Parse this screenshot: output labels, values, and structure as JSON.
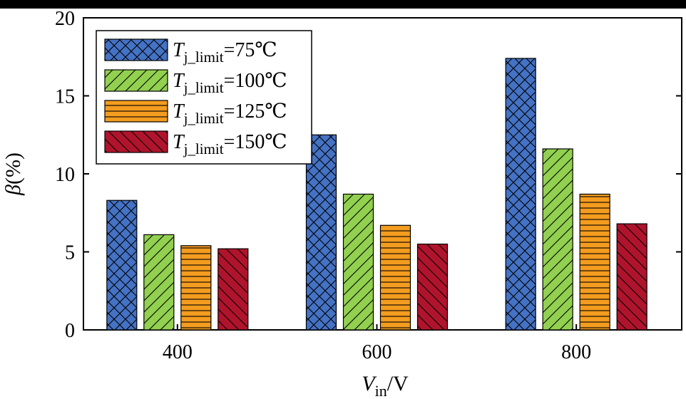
{
  "chart_data": {
    "type": "bar",
    "title": "",
    "xlabel": {
      "main": "V",
      "sub": "in",
      "unit": "/V"
    },
    "ylabel": {
      "symbol": "β",
      "unit": "(%)"
    },
    "categories": [
      "400",
      "600",
      "800"
    ],
    "ylim": [
      0,
      20
    ],
    "yticks": [
      "0",
      "5",
      "10",
      "15",
      "20"
    ],
    "grid": false,
    "legend_position": "top-left",
    "series": [
      {
        "name": "Tj_limit=75℃",
        "legend": {
          "main": "T",
          "sub": "j_limit",
          "rest": "=75℃"
        },
        "color": "#4472C4",
        "pattern": "crosshatch",
        "values": [
          8.3,
          12.5,
          17.4
        ]
      },
      {
        "name": "Tj_limit=100℃",
        "legend": {
          "main": "T",
          "sub": "j_limit",
          "rest": "=100℃"
        },
        "color": "#92D050",
        "pattern": "diagonal-forward",
        "values": [
          6.1,
          8.7,
          11.6
        ]
      },
      {
        "name": "Tj_limit=125℃",
        "legend": {
          "main": "T",
          "sub": "j_limit",
          "rest": "=125℃"
        },
        "color": "#F39C1F",
        "pattern": "horizontal",
        "values": [
          5.4,
          6.7,
          8.7
        ]
      },
      {
        "name": "Tj_limit=150℃",
        "legend": {
          "main": "T",
          "sub": "j_limit",
          "rest": "=150℃"
        },
        "color": "#B0142C",
        "pattern": "diagonal-back",
        "values": [
          5.2,
          5.5,
          6.8
        ]
      }
    ]
  }
}
